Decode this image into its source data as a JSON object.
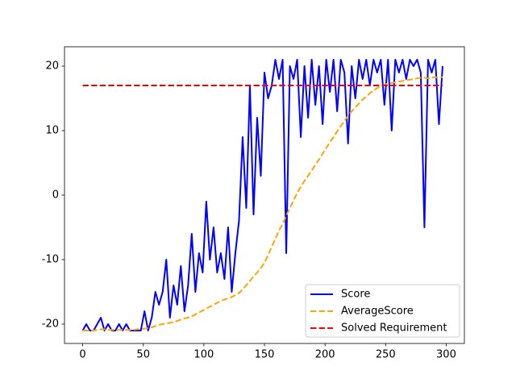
{
  "chart_data": {
    "type": "line",
    "x": [
      0,
      3,
      6,
      9,
      12,
      15,
      18,
      21,
      24,
      27,
      30,
      33,
      36,
      39,
      42,
      45,
      48,
      51,
      54,
      57,
      60,
      63,
      66,
      69,
      72,
      75,
      78,
      81,
      84,
      87,
      90,
      93,
      96,
      99,
      102,
      105,
      108,
      111,
      114,
      117,
      120,
      123,
      126,
      129,
      132,
      135,
      138,
      141,
      144,
      147,
      150,
      153,
      156,
      159,
      162,
      165,
      168,
      171,
      174,
      177,
      180,
      183,
      186,
      189,
      192,
      195,
      198,
      201,
      204,
      207,
      210,
      213,
      216,
      219,
      222,
      225,
      228,
      231,
      234,
      237,
      240,
      243,
      246,
      249,
      252,
      255,
      258,
      261,
      264,
      267,
      270,
      273,
      276,
      279,
      282,
      285,
      288,
      291,
      294,
      297
    ],
    "series": [
      {
        "name": "Score",
        "color": "#0000ff",
        "linestyle": "solid",
        "values": [
          -21,
          -20,
          -21,
          -21,
          -20,
          -19,
          -21,
          -20,
          -21,
          -21,
          -20,
          -21,
          -20,
          -21,
          -21,
          -21,
          -21,
          -18,
          -21,
          -19,
          -15,
          -17,
          -15,
          -10,
          -19,
          -14,
          -17,
          -11,
          -18,
          -14,
          -6,
          -15,
          -9,
          -12,
          -1,
          -10,
          -5,
          -12,
          -9,
          -13,
          -5,
          -15,
          -9,
          -4,
          9,
          -2,
          17,
          -3,
          12,
          3,
          19,
          15,
          17,
          21,
          18,
          21,
          -9,
          20,
          18,
          21,
          9,
          20,
          12,
          21,
          14,
          20,
          11,
          21,
          16,
          21,
          13,
          21,
          19,
          8,
          20,
          15,
          21,
          18,
          21,
          17,
          21,
          19,
          21,
          14,
          21,
          10,
          21,
          19,
          21,
          18,
          21,
          20,
          21,
          19,
          -5,
          21,
          19,
          21,
          11,
          20
        ]
      },
      {
        "name": "AverageScore",
        "color": "#ffa500",
        "linestyle": "dashed",
        "values": [
          -21,
          -21,
          -21,
          -21,
          -20.9,
          -20.8,
          -20.8,
          -20.9,
          -20.9,
          -20.9,
          -20.9,
          -20.9,
          -20.9,
          -20.9,
          -20.9,
          -20.8,
          -20.8,
          -20.7,
          -20.6,
          -20.5,
          -20.3,
          -20.1,
          -20,
          -19.9,
          -19.8,
          -19.7,
          -19.5,
          -19.3,
          -19.1,
          -19,
          -18.8,
          -18.5,
          -18.2,
          -17.9,
          -17.6,
          -17.3,
          -17,
          -16.7,
          -16.4,
          -16.2,
          -16,
          -15.8,
          -15.5,
          -15.2,
          -14.6,
          -14,
          -13.3,
          -12.6,
          -12,
          -11.3,
          -10.5,
          -9.3,
          -8,
          -6.8,
          -5.5,
          -4.5,
          -3.2,
          -2,
          -0.8,
          0.3,
          1.3,
          2.2,
          3,
          3.8,
          4.7,
          5.5,
          6.4,
          7.3,
          8.2,
          9,
          9.9,
          10.7,
          11.5,
          12.3,
          13,
          13.6,
          14.2,
          14.8,
          15.3,
          15.8,
          16.2,
          16.6,
          16.9,
          17.1,
          17.3,
          17.4,
          17.5,
          17.6,
          17.7,
          17.8,
          17.9,
          18,
          18.1,
          18.2,
          18.2,
          18.1,
          18.2,
          18.3,
          18.2,
          18.3
        ]
      },
      {
        "name": "Solved Requirement",
        "color": "#ff0000",
        "linestyle": "dashed",
        "values": [
          17,
          17,
          17,
          17,
          17,
          17,
          17,
          17,
          17,
          17,
          17,
          17,
          17,
          17,
          17,
          17,
          17,
          17,
          17,
          17,
          17,
          17,
          17,
          17,
          17,
          17,
          17,
          17,
          17,
          17,
          17,
          17,
          17,
          17,
          17,
          17,
          17,
          17,
          17,
          17,
          17,
          17,
          17,
          17,
          17,
          17,
          17,
          17,
          17,
          17,
          17,
          17,
          17,
          17,
          17,
          17,
          17,
          17,
          17,
          17,
          17,
          17,
          17,
          17,
          17,
          17,
          17,
          17,
          17,
          17,
          17,
          17,
          17,
          17,
          17,
          17,
          17,
          17,
          17,
          17,
          17,
          17,
          17,
          17,
          17,
          17,
          17,
          17,
          17,
          17,
          17,
          17,
          17,
          17,
          17,
          17,
          17,
          17,
          17,
          17
        ]
      }
    ],
    "xlim": [
      -15,
      315
    ],
    "ylim": [
      -23,
      23
    ],
    "xticks": [
      0,
      50,
      100,
      150,
      200,
      250,
      300
    ],
    "yticks": [
      -20,
      -10,
      0,
      10,
      20
    ],
    "grid": false,
    "legend": "lower right"
  }
}
